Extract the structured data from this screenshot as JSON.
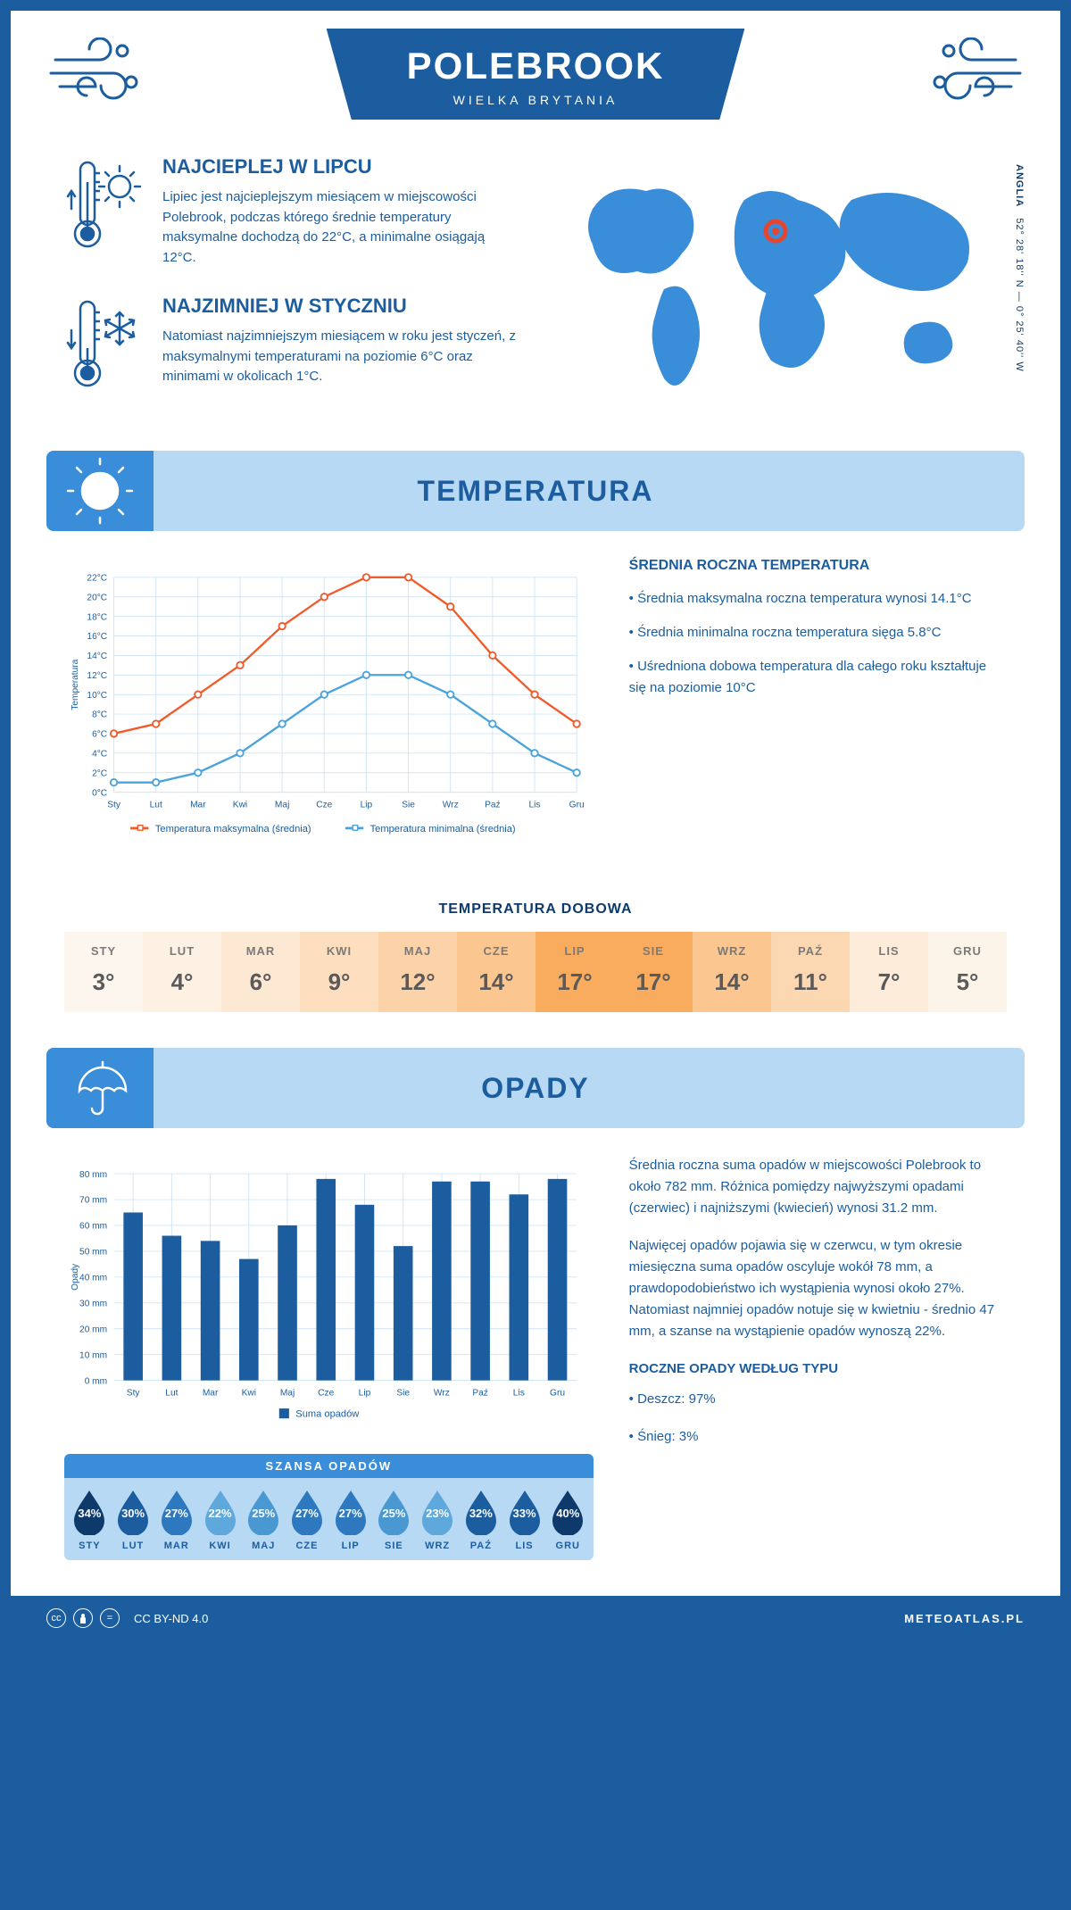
{
  "header": {
    "title": "POLEBROOK",
    "subtitle": "WIELKA BRYTANIA",
    "region": "ANGLIA",
    "coords": "52° 28' 18'' N — 0° 25' 40'' W"
  },
  "colors": {
    "primary": "#1b5d9e",
    "light_blue": "#b8d9f4",
    "mid_blue": "#3a8dd8",
    "orange": "#f15a29",
    "line_blue": "#4ba3db",
    "grid": "#d0e4f5"
  },
  "facts": {
    "hot": {
      "title": "NAJCIEPLEJ W LIPCU",
      "text": "Lipiec jest najcieplejszym miesiącem w miejscowości Polebrook, podczas którego średnie temperatury maksymalne dochodzą do 22°C, a minimalne osiągają 12°C."
    },
    "cold": {
      "title": "NAJZIMNIEJ W STYCZNIU",
      "text": "Natomiast najzimniejszym miesiącem w roku jest styczeń, z maksymalnymi temperaturami na poziomie 6°C oraz minimami w okolicach 1°C."
    }
  },
  "sections": {
    "temperature": "TEMPERATURA",
    "precipitation": "OPADY"
  },
  "temp_chart": {
    "type": "line",
    "months": [
      "Sty",
      "Lut",
      "Mar",
      "Kwi",
      "Maj",
      "Cze",
      "Lip",
      "Sie",
      "Wrz",
      "Paź",
      "Lis",
      "Gru"
    ],
    "series_max": {
      "label": "Temperatura maksymalna (średnia)",
      "color": "#f15a29",
      "values": [
        6,
        7,
        10,
        13,
        17,
        20,
        22,
        22,
        19,
        14,
        10,
        7
      ]
    },
    "series_min": {
      "label": "Temperatura minimalna (średnia)",
      "color": "#4ba3db",
      "values": [
        1,
        1,
        2,
        4,
        7,
        10,
        12,
        12,
        10,
        7,
        4,
        2
      ]
    },
    "ylabel": "Temperatura",
    "ylim": [
      0,
      22
    ],
    "ytick_step": 2,
    "y_suffix": "°C",
    "grid_color": "#d0e4f5",
    "background": "#ffffff"
  },
  "temp_info": {
    "heading": "ŚREDNIA ROCZNA TEMPERATURA",
    "bullets": [
      "• Średnia maksymalna roczna temperatura wynosi 14.1°C",
      "• Średnia minimalna roczna temperatura sięga 5.8°C",
      "• Uśredniona dobowa temperatura dla całego roku kształtuje się na poziomie 10°C"
    ]
  },
  "daily": {
    "title": "TEMPERATURA DOBOWA",
    "months": [
      "STY",
      "LUT",
      "MAR",
      "KWI",
      "MAJ",
      "CZE",
      "LIP",
      "SIE",
      "WRZ",
      "PAŹ",
      "LIS",
      "GRU"
    ],
    "values": [
      "3°",
      "4°",
      "6°",
      "9°",
      "12°",
      "14°",
      "17°",
      "17°",
      "14°",
      "11°",
      "7°",
      "5°"
    ],
    "temps": [
      3,
      4,
      6,
      9,
      12,
      14,
      17,
      17,
      14,
      11,
      7,
      5
    ],
    "color_scale": [
      "#fdf6ee",
      "#fdf1e3",
      "#fde9d3",
      "#fddfc0",
      "#fcd3a9",
      "#fbc690",
      "#f9ab5e",
      "#f9ab5e",
      "#fbc690",
      "#fcd8b2",
      "#fdecd9",
      "#fdf4e9"
    ]
  },
  "precip_chart": {
    "type": "bar",
    "months": [
      "Sty",
      "Lut",
      "Mar",
      "Kwi",
      "Maj",
      "Cze",
      "Lip",
      "Sie",
      "Wrz",
      "Paź",
      "Lis",
      "Gru"
    ],
    "values": [
      65,
      56,
      54,
      47,
      60,
      78,
      68,
      52,
      77,
      77,
      72,
      78
    ],
    "bar_color": "#1b5d9e",
    "ylabel": "Opady",
    "legend": "Suma opadów",
    "ylim": [
      0,
      80
    ],
    "ytick_step": 10,
    "y_suffix": " mm",
    "grid_color": "#d0e4f5",
    "bar_width": 0.5
  },
  "precip_info": {
    "p1": "Średnia roczna suma opadów w miejscowości Polebrook to około 782 mm. Różnica pomiędzy najwyższymi opadami (czerwiec) i najniższymi (kwiecień) wynosi 31.2 mm.",
    "p2": "Najwięcej opadów pojawia się w czerwcu, w tym okresie miesięczna suma opadów oscyluje wokół 78 mm, a prawdopodobieństwo ich wystąpienia wynosi około 27%. Natomiast najmniej opadów notuje się w kwietniu - średnio 47 mm, a szanse na wystąpienie opadów wynoszą 22%.",
    "type_heading": "ROCZNE OPADY WEDŁUG TYPU",
    "type_bullets": [
      "• Deszcz: 97%",
      "• Śnieg: 3%"
    ]
  },
  "chance": {
    "title": "SZANSA OPADÓW",
    "months": [
      "STY",
      "LUT",
      "MAR",
      "KWI",
      "MAJ",
      "CZE",
      "LIP",
      "SIE",
      "WRZ",
      "PAŹ",
      "LIS",
      "GRU"
    ],
    "values": [
      34,
      30,
      27,
      22,
      25,
      27,
      27,
      25,
      23,
      32,
      33,
      40
    ],
    "drop_colors": [
      "#0d3a6b",
      "#1b5d9e",
      "#2d78bf",
      "#5ea8db",
      "#4a98d1",
      "#2d78bf",
      "#2d78bf",
      "#4a98d1",
      "#5ea8db",
      "#1b5d9e",
      "#1b5d9e",
      "#0d3a6b"
    ]
  },
  "footer": {
    "license": "CC BY-ND 4.0",
    "site": "METEOATLAS.PL"
  }
}
